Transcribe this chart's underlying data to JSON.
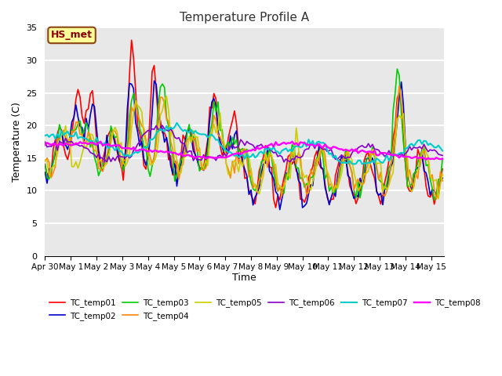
{
  "title": "Temperature Profile A",
  "xlabel": "Time",
  "ylabel": "Temperature (C)",
  "ylim": [
    0,
    35
  ],
  "xlim_days": [
    0,
    15.5
  ],
  "plot_bg_color": "#e8e8e8",
  "fig_bg_color": "#ffffff",
  "grid_color": "#ffffff",
  "annotation_text": "HS_met",
  "annotation_bg": "#ffff99",
  "annotation_border": "#8B4513",
  "series_colors": {
    "TC_temp01": "#ff0000",
    "TC_temp02": "#0000cc",
    "TC_temp03": "#00cc00",
    "TC_temp04": "#ff8800",
    "TC_temp05": "#cccc00",
    "TC_temp06": "#8800cc",
    "TC_temp07": "#00cccc",
    "TC_temp08": "#ff00ff"
  },
  "xtick_labels": [
    "Apr 30",
    "May 1",
    "May 2",
    "May 3",
    "May 4",
    "May 5",
    "May 6",
    "May 7",
    "May 8",
    "May 9",
    "May 10",
    "May 11",
    "May 12",
    "May 13",
    "May 14",
    "May 15"
  ],
  "xtick_positions": [
    0,
    1,
    2,
    3,
    4,
    5,
    6,
    7,
    8,
    9,
    10,
    11,
    12,
    13,
    14,
    15
  ],
  "ytick_positions": [
    0,
    5,
    10,
    15,
    20,
    25,
    30,
    35
  ]
}
